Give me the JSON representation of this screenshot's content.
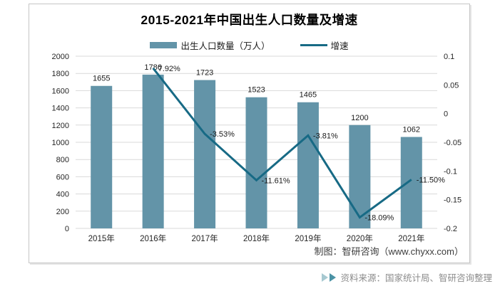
{
  "chart": {
    "title": "2015-2021年中国出生人口数量及增速",
    "credit": "制图：智研咨询（www.chyxx.com）",
    "legend": [
      {
        "label": "出生人口数量（万人）",
        "type": "bar",
        "color": "#6394a8"
      },
      {
        "label": "增速",
        "type": "line",
        "color": "#176a85"
      }
    ]
  },
  "chart_data": {
    "type": "bar",
    "title": "2015-2021年中国出生人口数量及增速",
    "categories": [
      "2015年",
      "2016年",
      "2017年",
      "2018年",
      "2019年",
      "2020年",
      "2021年"
    ],
    "series": [
      {
        "name": "出生人口数量（万人）",
        "type": "bar",
        "axis": "left",
        "color": "#6394a8",
        "values": [
          1655,
          1786,
          1723,
          1523,
          1465,
          1200,
          1062
        ]
      },
      {
        "name": "增速",
        "type": "line",
        "axis": "right",
        "color": "#176a85",
        "values": [
          null,
          0.0792,
          -0.0353,
          -0.1161,
          -0.0381,
          -0.1809,
          -0.115
        ],
        "labels": [
          "",
          "7.92%",
          "-3.53%",
          "-11.61%",
          "-3.81%",
          "-18.09%",
          "-11.50%"
        ]
      }
    ],
    "left_axis": {
      "min": 0,
      "max": 2000,
      "step": 200,
      "ticks": [
        2000,
        1800,
        1600,
        1400,
        1200,
        1000,
        800,
        600,
        400,
        200,
        0
      ]
    },
    "right_axis": {
      "min": -0.2,
      "max": 0.1,
      "step": 0.05,
      "ticks": [
        0.1,
        0.05,
        0,
        -0.05,
        -0.1,
        -0.15,
        -0.2
      ]
    },
    "grid": true,
    "grid_color": "#d9d9d9",
    "axis_text_color": "#262626",
    "legend_position": "top"
  },
  "footer": {
    "source": "资料来源：国家统计局、智研咨询整理",
    "arrow_colors": [
      "#a7c9d1",
      "#4b93a5"
    ]
  }
}
